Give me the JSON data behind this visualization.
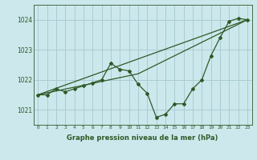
{
  "bg_color": "#cce8ec",
  "grid_color": "#aaccd4",
  "line_color": "#2d5a27",
  "title": "Graphe pression niveau de la mer (hPa)",
  "xlim": [
    -0.5,
    23.5
  ],
  "ylim": [
    1020.5,
    1024.5
  ],
  "yticks": [
    1021,
    1022,
    1023,
    1024
  ],
  "xticks": [
    0,
    1,
    2,
    3,
    4,
    5,
    6,
    7,
    8,
    9,
    10,
    11,
    12,
    13,
    14,
    15,
    16,
    17,
    18,
    19,
    20,
    21,
    22,
    23
  ],
  "series1_x": [
    0,
    1,
    2,
    3,
    4,
    5,
    6,
    7,
    8,
    9,
    10,
    11,
    12,
    13,
    14,
    15,
    16,
    17,
    18,
    19,
    20,
    21,
    22,
    23
  ],
  "series1_y": [
    1021.5,
    1021.5,
    1021.7,
    1021.6,
    1021.7,
    1021.8,
    1021.9,
    1022.0,
    1022.55,
    1022.35,
    1022.3,
    1021.85,
    1021.55,
    1020.75,
    1020.85,
    1021.2,
    1021.2,
    1021.7,
    1022.0,
    1022.8,
    1023.4,
    1023.95,
    1024.05,
    1024.0
  ],
  "series2_x": [
    0,
    23
  ],
  "series2_y": [
    1021.5,
    1024.0
  ],
  "series3_x": [
    0,
    11,
    23
  ],
  "series3_y": [
    1021.5,
    1022.2,
    1024.0
  ]
}
